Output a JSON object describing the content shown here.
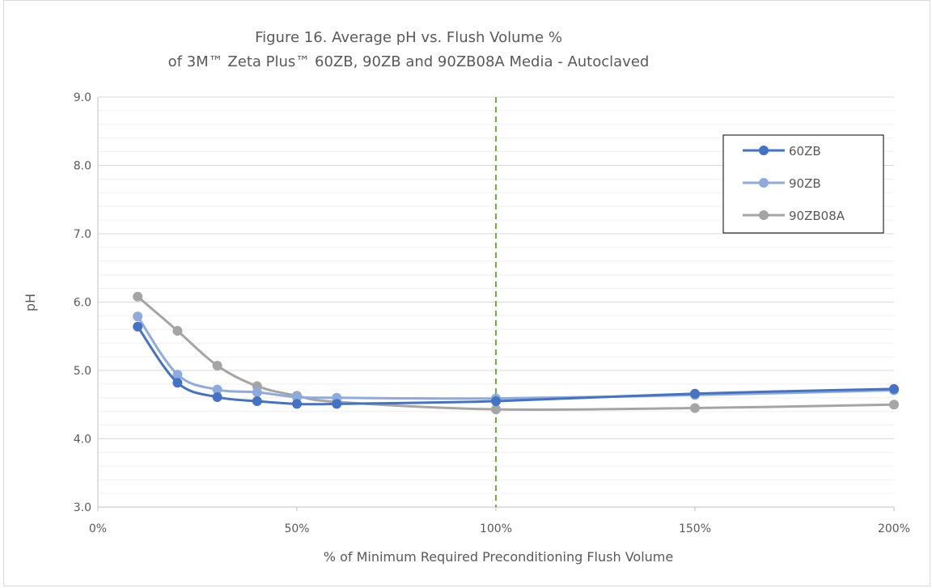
{
  "chart_data": {
    "type": "line",
    "title_lines": [
      "Figure 16.  Average pH vs. Flush Volume %",
      "of 3M™ Zeta Plus™ 60ZB, 90ZB and 90ZB08A Media - Autoclaved"
    ],
    "xlabel": "% of Minimum Required Preconditioning Flush Volume",
    "ylabel": "pH",
    "xlim": [
      0,
      200
    ],
    "ylim": [
      3.0,
      9.0
    ],
    "x_ticks": [
      {
        "value": 0,
        "label": "0%"
      },
      {
        "value": 50,
        "label": "50%"
      },
      {
        "value": 100,
        "label": "100%"
      },
      {
        "value": 150,
        "label": "150%"
      },
      {
        "value": 200,
        "label": "200%"
      }
    ],
    "y_ticks": [
      {
        "value": 3.0,
        "label": "3.0"
      },
      {
        "value": 4.0,
        "label": "4.0"
      },
      {
        "value": 5.0,
        "label": "5.0"
      },
      {
        "value": 6.0,
        "label": "6.0"
      },
      {
        "value": 7.0,
        "label": "7.0"
      },
      {
        "value": 8.0,
        "label": "8.0"
      },
      {
        "value": 9.0,
        "label": "9.0"
      }
    ],
    "y_minor_step": 0.2,
    "grid": true,
    "reference_line": {
      "x": 100,
      "style": "dashed",
      "color": "#70ad47"
    },
    "legend_position": "top-right",
    "series": [
      {
        "name": "60ZB",
        "color": "#4472c4",
        "x": [
          10,
          20,
          30,
          40,
          50,
          60,
          100,
          150,
          200
        ],
        "y": [
          5.64,
          4.82,
          4.61,
          4.55,
          4.51,
          4.51,
          4.55,
          4.66,
          4.73
        ]
      },
      {
        "name": "90ZB",
        "color": "#8faadc",
        "x": [
          10,
          20,
          30,
          40,
          50,
          60,
          100,
          150,
          200
        ],
        "y": [
          5.79,
          4.94,
          4.72,
          4.68,
          4.61,
          4.6,
          4.59,
          4.64,
          4.71
        ]
      },
      {
        "name": "90ZB08A",
        "color": "#a5a5a5",
        "x": [
          10,
          20,
          30,
          40,
          50,
          60,
          100,
          150,
          200
        ],
        "y": [
          6.08,
          5.58,
          5.07,
          4.77,
          4.63,
          4.54,
          4.43,
          4.45,
          4.5
        ]
      }
    ]
  }
}
